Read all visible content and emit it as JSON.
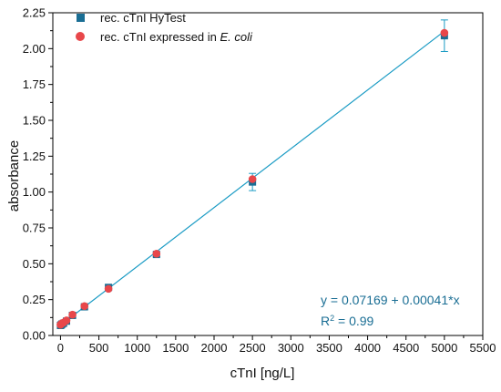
{
  "chart_data": {
    "type": "scatter",
    "xlabel": "cTnI [ng/L]",
    "ylabel": "absorbance",
    "xlim": [
      -100,
      5500
    ],
    "ylim": [
      0,
      2.25
    ],
    "x_ticks": [
      0,
      500,
      1000,
      1500,
      2000,
      2500,
      3000,
      3500,
      4000,
      4500,
      5000,
      5500
    ],
    "y_ticks": [
      0.0,
      0.25,
      0.5,
      0.75,
      1.0,
      1.25,
      1.5,
      1.75,
      2.0,
      2.25
    ],
    "x_tick_labels": [
      "0",
      "500",
      "1000",
      "1500",
      "2000",
      "2500",
      "3000",
      "3500",
      "4000",
      "4500",
      "5000",
      "5500"
    ],
    "y_tick_labels": [
      "0.00",
      "0.25",
      "0.50",
      "0.75",
      "1.00",
      "1.25",
      "1.50",
      "1.75",
      "2.00",
      "2.25"
    ],
    "grid": false,
    "legend_position": "top-left",
    "series": [
      {
        "name": "rec. cTnI HyTest",
        "marker": "square",
        "color": "#1a6e94",
        "points": [
          {
            "x": 0,
            "y": 0.07,
            "err": 0.01
          },
          {
            "x": 10,
            "y": 0.075,
            "err": 0.01
          },
          {
            "x": 20,
            "y": 0.08,
            "err": 0.01
          },
          {
            "x": 39,
            "y": 0.085,
            "err": 0.01
          },
          {
            "x": 78,
            "y": 0.1,
            "err": 0.01
          },
          {
            "x": 156,
            "y": 0.14,
            "err": 0.015
          },
          {
            "x": 312,
            "y": 0.2,
            "err": 0.015
          },
          {
            "x": 625,
            "y": 0.335,
            "err": 0.02
          },
          {
            "x": 1250,
            "y": 0.565,
            "err": 0.015
          },
          {
            "x": 2500,
            "y": 1.07,
            "err": 0.06
          },
          {
            "x": 5000,
            "y": 2.09,
            "err": 0.11
          }
        ]
      },
      {
        "name": "rec. cTnI expressed in",
        "name_italic": "E. coli",
        "marker": "circle",
        "color": "#e8474a",
        "points": [
          {
            "x": 0,
            "y": 0.075
          },
          {
            "x": 10,
            "y": 0.08
          },
          {
            "x": 20,
            "y": 0.085
          },
          {
            "x": 39,
            "y": 0.09
          },
          {
            "x": 78,
            "y": 0.105
          },
          {
            "x": 156,
            "y": 0.145
          },
          {
            "x": 312,
            "y": 0.205
          },
          {
            "x": 625,
            "y": 0.325
          },
          {
            "x": 1250,
            "y": 0.57
          },
          {
            "x": 2500,
            "y": 1.09
          },
          {
            "x": 5000,
            "y": 2.11
          }
        ]
      }
    ],
    "fit": {
      "intercept": 0.07169,
      "slope": 0.00041,
      "x_range": [
        0,
        5000
      ],
      "color": "#1a9bc4",
      "equation": "y = 0.07169 + 0.00041*x",
      "r2_prefix": "R",
      "r2_sup": "2",
      "r2_value": " = 0.99"
    },
    "equation_color": "#1a6e94"
  }
}
